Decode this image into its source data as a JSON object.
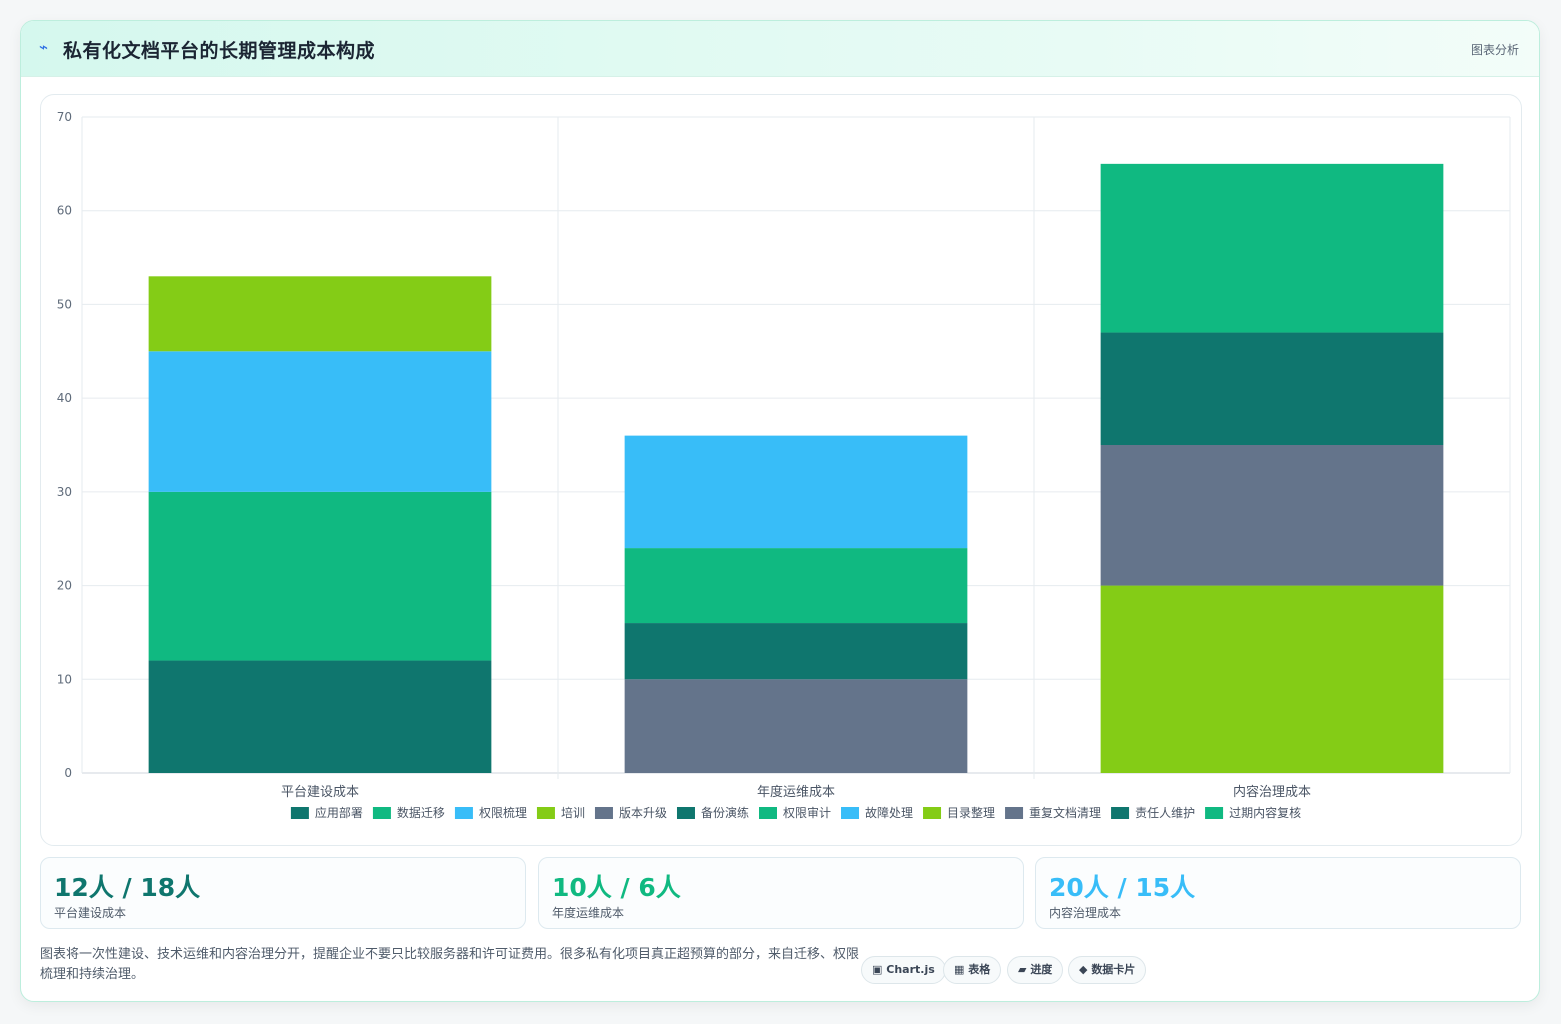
{
  "header": {
    "title": "私有化文档平台的长期管理成本构成",
    "tag": "图表分析"
  },
  "chart_data": {
    "type": "bar",
    "stacked": true,
    "categories": [
      "平台建设成本",
      "年度运维成本",
      "内容治理成本"
    ],
    "ylim": [
      0,
      70
    ],
    "yticks": [
      0,
      10,
      20,
      30,
      40,
      50,
      60,
      70
    ],
    "grid": true,
    "legend_position": "bottom",
    "series": [
      {
        "name": "应用部署",
        "color": "#0f766e",
        "values": [
          12,
          0,
          0
        ]
      },
      {
        "name": "数据迁移",
        "color": "#10b981",
        "values": [
          18,
          0,
          0
        ]
      },
      {
        "name": "权限梳理",
        "color": "#38bdf8",
        "values": [
          15,
          0,
          0
        ]
      },
      {
        "name": "培训",
        "color": "#84cc16",
        "values": [
          8,
          0,
          0
        ]
      },
      {
        "name": "版本升级",
        "color": "#64748b",
        "values": [
          0,
          10,
          0
        ]
      },
      {
        "name": "备份演练",
        "color": "#0f766e",
        "values": [
          0,
          6,
          0
        ]
      },
      {
        "name": "权限审计",
        "color": "#10b981",
        "values": [
          0,
          8,
          0
        ]
      },
      {
        "name": "故障处理",
        "color": "#38bdf8",
        "values": [
          0,
          12,
          0
        ]
      },
      {
        "name": "目录整理",
        "color": "#84cc16",
        "values": [
          0,
          0,
          20
        ]
      },
      {
        "name": "重复文档清理",
        "color": "#64748b",
        "values": [
          0,
          0,
          15
        ]
      },
      {
        "name": "责任人维护",
        "color": "#0f766e",
        "values": [
          0,
          0,
          12
        ]
      },
      {
        "name": "过期内容复核",
        "color": "#10b981",
        "values": [
          0,
          0,
          18
        ]
      }
    ]
  },
  "stats": [
    {
      "value": "12人 / 18人",
      "label": "平台建设成本",
      "color": "#0f766e"
    },
    {
      "value": "10人 / 6人",
      "label": "年度运维成本",
      "color": "#10b981"
    },
    {
      "value": "20人 / 15人",
      "label": "内容治理成本",
      "color": "#38bdf8"
    }
  ],
  "footer": {
    "text": "图表将一次性建设、技术运维和内容治理分开，提醒企业不要只比较服务器和许可证费用。很多私有化项目真正超预算的部分，来自迁移、权限梳理和持续治理。"
  },
  "chips": [
    {
      "icon": "▣",
      "label": "Chart.js"
    },
    {
      "icon": "▦",
      "label": "表格"
    },
    {
      "icon": "▰",
      "label": "进度"
    },
    {
      "icon": "◆",
      "label": "数据卡片"
    }
  ]
}
